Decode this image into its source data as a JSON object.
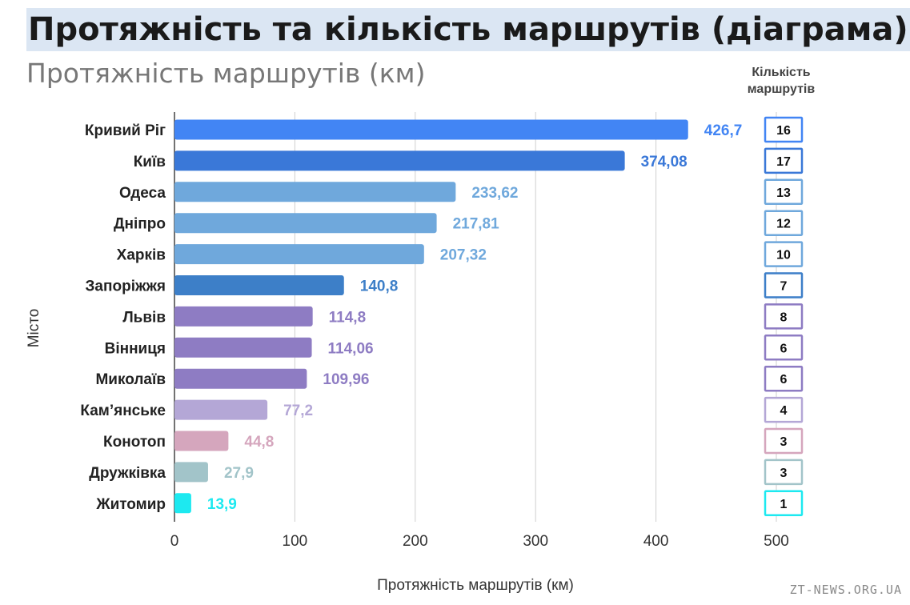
{
  "page": {
    "headline": "Протяжність та кількість маршрутів (діаграма)",
    "subtitle": "Протяжність маршрутів (км)",
    "count_column_title": "Кількість маршрутів",
    "watermark": "ZT-NEWS.ORG.UA"
  },
  "chart_data": {
    "type": "bar",
    "orientation": "horizontal",
    "title": "Протяжність маршрутів (км)",
    "xlabel": "Протяжність маршрутів (км)",
    "ylabel": "Місто",
    "xlim": [
      0,
      500
    ],
    "x_ticks": [
      0,
      100,
      200,
      300,
      400,
      500
    ],
    "grid": true,
    "categories": [
      "Кривий Ріг",
      "Київ",
      "Одеса",
      "Дніпро",
      "Харків",
      "Запоріжжя",
      "Львів",
      "Вінниця",
      "Миколаїв",
      "Кам’янське",
      "Конотоп",
      "Дружківка",
      "Житомир"
    ],
    "values": [
      426.7,
      374.08,
      233.62,
      217.81,
      207.32,
      140.8,
      114.8,
      114.06,
      109.96,
      77.2,
      44.8,
      27.9,
      13.9
    ],
    "value_labels": [
      "426,7",
      "374,08",
      "233,62",
      "217,81",
      "207,32",
      "140,8",
      "114,8",
      "114,06",
      "109,96",
      "77,2",
      "44,8",
      "27,9",
      "13,9"
    ],
    "route_counts_title": "Кількість маршрутів",
    "route_counts": [
      16,
      17,
      13,
      12,
      10,
      7,
      8,
      6,
      6,
      4,
      3,
      3,
      1
    ],
    "colors": [
      "#4285f4",
      "#3a78d8",
      "#6fa8dc",
      "#6fa8dc",
      "#6fa8dc",
      "#3d7fc8",
      "#8e7cc3",
      "#8e7cc3",
      "#8e7cc3",
      "#b4a7d6",
      "#d5a6bd",
      "#a2c4c9",
      "#1de9f0"
    ],
    "label_colors": [
      "#4285f4",
      "#3a78d8",
      "#6fa8dc",
      "#6fa8dc",
      "#6fa8dc",
      "#3d7fc8",
      "#8e7cc3",
      "#8e7cc3",
      "#8e7cc3",
      "#b4a7d6",
      "#d5a6bd",
      "#a2c4c9",
      "#1de9f0"
    ]
  }
}
